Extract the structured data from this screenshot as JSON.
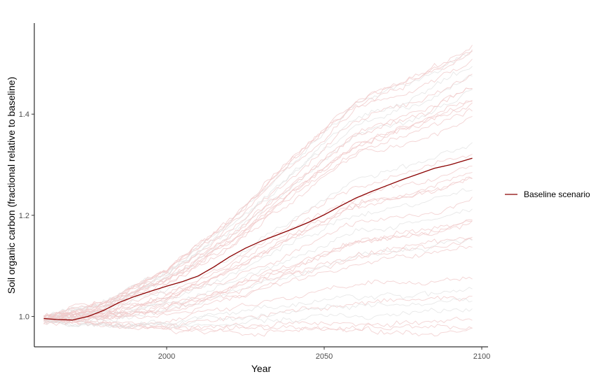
{
  "chart_data": {
    "type": "line",
    "xlabel": "Year",
    "ylabel": "Soil organic carbon (fractional relative to baseline)",
    "xlim": [
      1958,
      2102
    ],
    "ylim": [
      0.94,
      1.58
    ],
    "x_ticks": [
      2000,
      2050,
      2100
    ],
    "y_ticks": [
      1.0,
      1.2,
      1.4
    ],
    "x_tick_labels": [
      "2000",
      "2050",
      "2100"
    ],
    "y_tick_labels": [
      "1.0",
      "1.2",
      "1.4"
    ],
    "grid": false,
    "legend_position": "right",
    "colors": {
      "main": "#8b0000",
      "ensemble": "#f0c8c8",
      "ensemble_grey": "#e2e2e2"
    },
    "series": [
      {
        "name": "Baseline scenario",
        "x": [
          1961,
          1965,
          1970,
          1975,
          1980,
          1985,
          1990,
          1995,
          2000,
          2005,
          2010,
          2015,
          2020,
          2025,
          2030,
          2035,
          2040,
          2045,
          2050,
          2055,
          2060,
          2065,
          2070,
          2075,
          2080,
          2085,
          2090,
          2097
        ],
        "y": [
          0.996,
          0.994,
          0.993,
          1.0,
          1.012,
          1.028,
          1.04,
          1.05,
          1.06,
          1.069,
          1.08,
          1.098,
          1.118,
          1.135,
          1.149,
          1.161,
          1.173,
          1.186,
          1.201,
          1.218,
          1.234,
          1.247,
          1.259,
          1.271,
          1.282,
          1.293,
          1.3,
          1.313
        ]
      }
    ],
    "ensemble_envelope": {
      "x": [
        1961,
        1980,
        2000,
        2020,
        2040,
        2060,
        2080,
        2097
      ],
      "lower": [
        0.99,
        0.98,
        0.97,
        0.97,
        0.97,
        0.97,
        0.97,
        0.97
      ],
      "upper": [
        1.0,
        1.03,
        1.1,
        1.2,
        1.33,
        1.45,
        1.5,
        1.56
      ],
      "members": 40
    }
  }
}
